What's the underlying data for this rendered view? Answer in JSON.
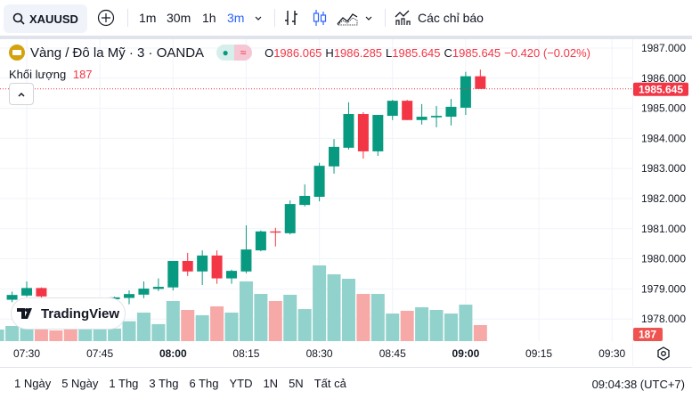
{
  "toolbar": {
    "symbol": "XAUUSD",
    "intervals": [
      "1m",
      "30m",
      "1h",
      "3m"
    ],
    "active_interval": "3m",
    "indicators_label": "Các chỉ báo"
  },
  "legend": {
    "title": "Vàng / Đô la Mỹ · 3 · OANDA",
    "o_label": "O",
    "o": "1986.065",
    "h_label": "H",
    "h": "1986.285",
    "l_label": "L",
    "l": "1985.645",
    "c_label": "C",
    "c": "1985.645",
    "change": "−0.420 (−0.02%)",
    "volume_label": "Khối lượng",
    "volume": "187",
    "pill_symbol": "≈"
  },
  "logo": "TradingView",
  "colors": {
    "up": "#089981",
    "down": "#f23645",
    "vol_up": "#92d2cc",
    "vol_down": "#f7a9a7",
    "accent": "#2962ff"
  },
  "chart_data": {
    "type": "candlestick",
    "price_ticks": [
      "1987.000",
      "1986.000",
      "1985.000",
      "1984.000",
      "1983.000",
      "1982.000",
      "1981.000",
      "1980.000",
      "1979.000",
      "1978.000"
    ],
    "time_ticks": [
      {
        "label": "07:30",
        "t": "07:30",
        "bold": false
      },
      {
        "label": "07:45",
        "t": "07:45",
        "bold": false
      },
      {
        "label": "08:00",
        "t": "08:00",
        "bold": true
      },
      {
        "label": "08:15",
        "t": "08:15",
        "bold": false
      },
      {
        "label": "08:30",
        "t": "08:30",
        "bold": false
      },
      {
        "label": "08:45",
        "t": "08:45",
        "bold": false
      },
      {
        "label": "09:00",
        "t": "09:00",
        "bold": true
      },
      {
        "label": "09:15",
        "t": "09:15",
        "bold": false
      },
      {
        "label": "09:30",
        "t": "09:30",
        "bold": false
      }
    ],
    "last_price": "1985.645",
    "last_volume": "187",
    "candles": [
      {
        "t": "07:24",
        "v": 135,
        "up": true
      },
      {
        "t": "07:27",
        "o": 1978.64,
        "h": 1978.91,
        "l": 1978.56,
        "c": 1978.8,
        "v": 177
      },
      {
        "t": "07:30",
        "o": 1978.78,
        "h": 1979.25,
        "l": 1978.74,
        "c": 1979.03,
        "v": 177
      },
      {
        "t": "07:33",
        "o": 1979.03,
        "h": 1979.05,
        "l": 1978.7,
        "c": 1978.75,
        "v": 177
      },
      {
        "t": "07:36",
        "v": 125,
        "up": false
      },
      {
        "t": "07:39",
        "v": 159,
        "up": false
      },
      {
        "t": "07:42",
        "v": 156,
        "up": true
      },
      {
        "t": "07:45",
        "v": 156,
        "up": true
      },
      {
        "t": "07:48",
        "o": 1978.66,
        "h": 1978.74,
        "l": 1978.64,
        "c": 1978.72,
        "v": 146
      },
      {
        "t": "07:51",
        "o": 1978.7,
        "h": 1978.95,
        "l": 1978.49,
        "c": 1978.83,
        "v": 232
      },
      {
        "t": "07:54",
        "o": 1978.81,
        "h": 1979.25,
        "l": 1978.69,
        "c": 1979.01,
        "v": 333
      },
      {
        "t": "07:57",
        "o": 1979.0,
        "h": 1979.35,
        "l": 1978.93,
        "c": 1979.07,
        "v": 198
      },
      {
        "t": "08:00",
        "o": 1979.05,
        "h": 1979.93,
        "l": 1978.95,
        "c": 1979.93,
        "v": 468
      },
      {
        "t": "08:03",
        "o": 1979.93,
        "h": 1980.2,
        "l": 1979.43,
        "c": 1979.58,
        "v": 364
      },
      {
        "t": "08:06",
        "o": 1979.58,
        "h": 1980.28,
        "l": 1979.13,
        "c": 1980.11,
        "v": 302
      },
      {
        "t": "08:09",
        "o": 1980.11,
        "h": 1980.28,
        "l": 1979.17,
        "c": 1979.35,
        "v": 406
      },
      {
        "t": "08:12",
        "o": 1979.35,
        "h": 1979.64,
        "l": 1979.17,
        "c": 1979.6,
        "v": 333
      },
      {
        "t": "08:15",
        "o": 1979.58,
        "h": 1981.11,
        "l": 1979.52,
        "c": 1980.31,
        "v": 697
      },
      {
        "t": "08:18",
        "o": 1980.28,
        "h": 1980.94,
        "l": 1980.25,
        "c": 1980.91,
        "v": 551
      },
      {
        "t": "08:21",
        "o": 1980.91,
        "h": 1981.03,
        "l": 1980.41,
        "c": 1980.87,
        "v": 468
      },
      {
        "t": "08:24",
        "o": 1980.85,
        "h": 1981.94,
        "l": 1980.81,
        "c": 1981.82,
        "v": 541
      },
      {
        "t": "08:27",
        "o": 1981.79,
        "h": 1982.47,
        "l": 1981.74,
        "c": 1982.09,
        "v": 374
      },
      {
        "t": "08:30",
        "o": 1982.06,
        "h": 1983.19,
        "l": 1981.91,
        "c": 1983.09,
        "v": 884
      },
      {
        "t": "08:33",
        "o": 1983.07,
        "h": 1983.98,
        "l": 1982.83,
        "c": 1983.72,
        "v": 780
      },
      {
        "t": "08:36",
        "o": 1983.69,
        "h": 1985.2,
        "l": 1983.63,
        "c": 1984.81,
        "v": 728
      },
      {
        "t": "08:39",
        "o": 1984.81,
        "h": 1984.87,
        "l": 1983.33,
        "c": 1983.57,
        "v": 551
      },
      {
        "t": "08:42",
        "o": 1983.57,
        "h": 1984.78,
        "l": 1983.42,
        "c": 1984.78,
        "v": 551
      },
      {
        "t": "08:45",
        "o": 1984.75,
        "h": 1985.28,
        "l": 1984.61,
        "c": 1985.25,
        "v": 322
      },
      {
        "t": "08:48",
        "o": 1985.25,
        "h": 1985.28,
        "l": 1984.61,
        "c": 1984.61,
        "v": 354
      },
      {
        "t": "08:51",
        "o": 1984.61,
        "h": 1985.14,
        "l": 1984.46,
        "c": 1984.72,
        "v": 395
      },
      {
        "t": "08:54",
        "o": 1984.7,
        "h": 1985.08,
        "l": 1984.37,
        "c": 1984.75,
        "v": 364
      },
      {
        "t": "08:57",
        "o": 1984.72,
        "h": 1985.31,
        "l": 1984.43,
        "c": 1985.05,
        "v": 322
      },
      {
        "t": "09:00",
        "o": 1985.02,
        "h": 1986.21,
        "l": 1984.78,
        "c": 1986.065,
        "v": 426
      },
      {
        "t": "09:03",
        "o": 1986.065,
        "h": 1986.285,
        "l": 1985.645,
        "c": 1985.645,
        "v": 187
      }
    ]
  },
  "bottombar": {
    "ranges": [
      "1 Ngày",
      "5 Ngày",
      "1 Thg",
      "3 Thg",
      "6 Thg",
      "YTD",
      "1N",
      "5N",
      "Tất cả"
    ],
    "clock": "09:04:38 (UTC+7)"
  }
}
